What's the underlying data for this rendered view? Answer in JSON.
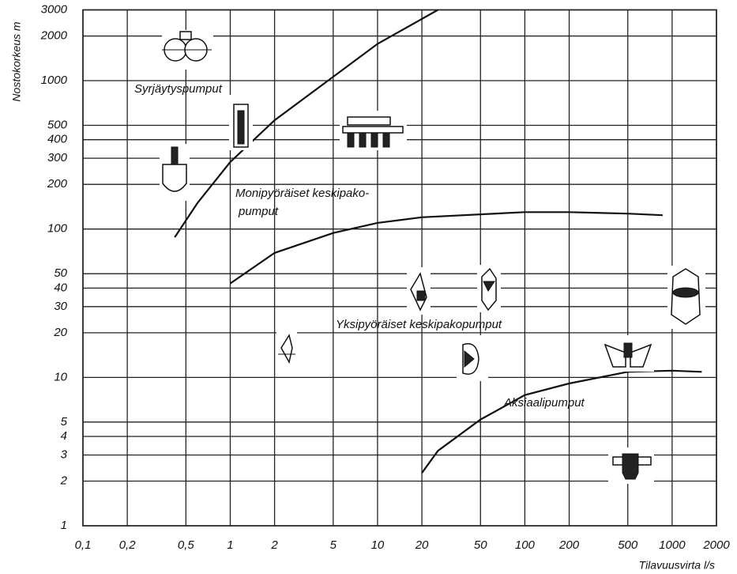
{
  "chart_data": {
    "type": "line",
    "xlabel": "Tilavuusvirta l/s",
    "ylabel": "Nostokorkeus m",
    "xscale": "log",
    "yscale": "log",
    "grid": true,
    "xlim": [
      0.1,
      2000
    ],
    "ylim": [
      1,
      3000
    ],
    "xticks": [
      {
        "value": 0.1,
        "label": "0,1"
      },
      {
        "value": 0.2,
        "label": "0,2"
      },
      {
        "value": 0.5,
        "label": "0,5"
      },
      1,
      2,
      5,
      10,
      20,
      50,
      100,
      200,
      500,
      1000,
      2000
    ],
    "yticks": [
      1,
      2,
      3,
      4,
      5,
      10,
      20,
      30,
      40,
      50,
      100,
      200,
      300,
      400,
      500,
      1000,
      2000,
      3000
    ],
    "series": [
      {
        "color": "#111111",
        "x": [
          0.42,
          0.6,
          1,
          2,
          5,
          10,
          25.7
        ],
        "values": [
          88,
          150,
          283,
          541,
          1062,
          1770,
          3000
        ]
      },
      {
        "color": "#111111",
        "x": [
          1,
          2,
          5,
          10,
          20,
          100,
          200,
          500,
          863
        ],
        "values": [
          43,
          69,
          94,
          110,
          120,
          130,
          130,
          127,
          124
        ]
      },
      {
        "color": "#111111",
        "x": [
          20,
          25.7,
          50,
          100,
          200,
          500,
          1000,
          1590
        ],
        "values": [
          2.27,
          3.2,
          5.2,
          7.6,
          9.1,
          10.9,
          11.1,
          10.9
        ]
      }
    ],
    "annotations": [
      "Syrjäytyspumput",
      "Monipyöräiset keskipako-",
      "pumput",
      "Yksipyöräiset keskipakopumput",
      "Aksiaalipumput"
    ]
  }
}
